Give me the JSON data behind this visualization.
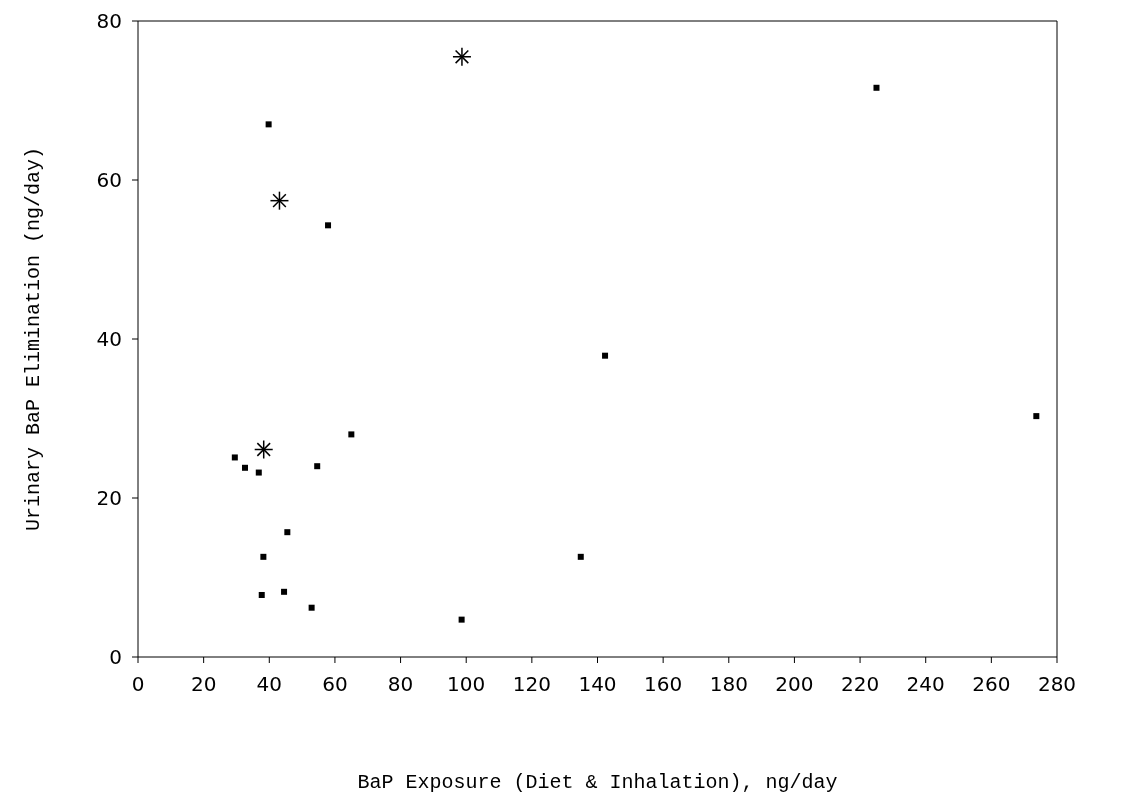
{
  "chart_data": {
    "type": "scatter",
    "xlabel": "BaP Exposure (Diet & Inhalation), ng/day",
    "ylabel": "Urinary BaP Elimination (ng/day)",
    "xlim": [
      0,
      280
    ],
    "xticks": [
      0,
      20,
      40,
      60,
      80,
      100,
      120,
      140,
      160,
      180,
      200,
      220,
      240,
      260,
      280
    ],
    "ylim": [
      0,
      80
    ],
    "yticks": [
      0,
      20,
      40,
      60,
      80
    ],
    "series": [
      {
        "color": "#000000",
        "marker": "square",
        "x": [
          39.8,
          57.9,
          65,
          29.5,
          32.6,
          36.8,
          54.6,
          45.5,
          38.2,
          37.7,
          44.5,
          52.9,
          98.6,
          142.3,
          273.7,
          134.9,
          225
        ],
        "values": [
          67,
          54.3,
          28,
          25.1,
          23.8,
          23.2,
          24,
          15.7,
          12.6,
          7.8,
          8.2,
          6.2,
          4.7,
          37.9,
          30.3,
          12.6,
          71.6
        ]
      },
      {
        "color": "#000000",
        "marker": "cross",
        "x": [
          43.1,
          38.3,
          98.7
        ],
        "values": [
          57.4,
          26.1,
          75.5
        ]
      }
    ]
  }
}
